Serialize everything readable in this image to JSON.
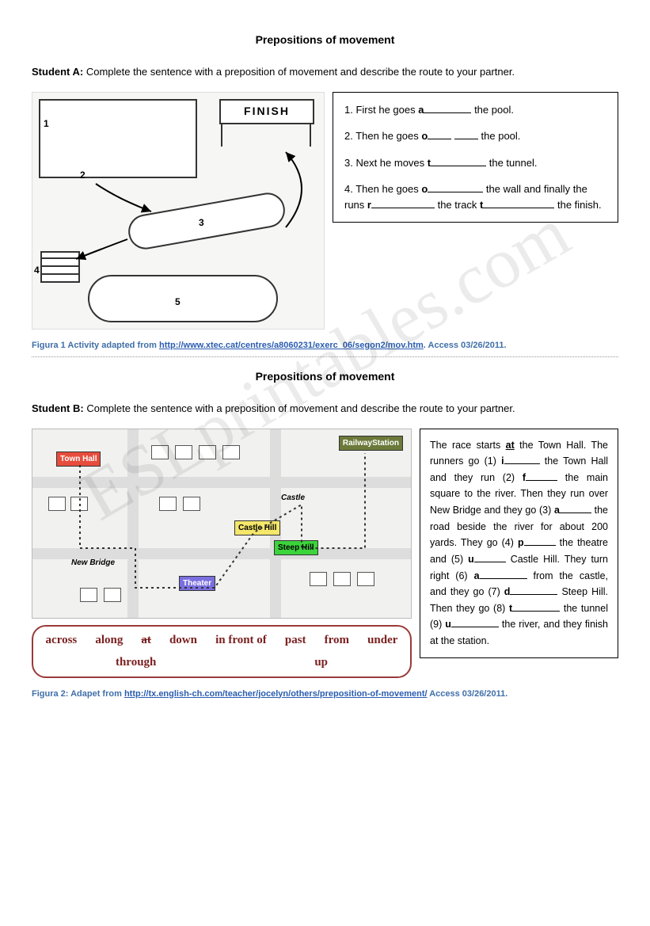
{
  "watermark_text": "ESLprintables.com",
  "sectionA": {
    "title": "Prepositions of movement",
    "instruction_prefix": "Student A:",
    "instruction_text": " Complete the sentence with a preposition of movement and describe the route to your partner.",
    "finish_label": "FINISH",
    "numbers": {
      "n1": "1",
      "n2": "2",
      "n3": "3",
      "n4": "4",
      "n5": "5"
    },
    "q1_a": "1. First he goes ",
    "q1_bold": "a",
    "q1_b": " the pool.",
    "q2_a": "2. Then he goes ",
    "q2_bold": "o",
    "q2_b": " the pool.",
    "q3_a": "3. Next he moves ",
    "q3_bold": "t",
    "q3_b": " the tunnel.",
    "q4_a": "4. Then he goes ",
    "q4_bold": "o",
    "q4_b": " the wall and finally the runs ",
    "q4_bold2": "r",
    "q4_c": " the track ",
    "q4_bold3": "t",
    "q4_d": " the finish.",
    "caption_prefix": "Figura 1 Activity adapted from ",
    "caption_url": "http://www.xtec.cat/centres/a8060231/exerc_06/segon2/mov.htm",
    "caption_access": ". Access 03/26/2011."
  },
  "sectionB": {
    "title": "Prepositions of movement",
    "instruction_prefix": "Student B:",
    "instruction_text": " Complete the sentence with a preposition of movement and describe the route to your partner.",
    "labels": {
      "townhall": {
        "text": "Town Hall",
        "bg": "#e74c3c",
        "color": "#ffffff"
      },
      "railway": {
        "text": "RailwayStation",
        "bg": "#6b7a3a",
        "color": "#ffffff"
      },
      "castle": {
        "text": "Castle",
        "bg": "transparent",
        "color": "#000000"
      },
      "castlehill": {
        "text": "Castle Hill",
        "bg": "#f4e76a",
        "color": "#000000"
      },
      "steephill": {
        "text": "Steep Hill",
        "bg": "#3bd43b",
        "color": "#000000"
      },
      "newbridge": {
        "text": "New Bridge",
        "bg": "transparent",
        "color": "#000000"
      },
      "theater": {
        "text": "Theater",
        "bg": "#7a6fe0",
        "color": "#ffffff"
      }
    },
    "wordbank": [
      "across",
      "along",
      "at",
      "down",
      "in front of",
      "past",
      "from",
      "under",
      "through",
      "up"
    ],
    "wordbank_struck": "at",
    "passage": {
      "t0": "The race starts ",
      "at_bold": "at",
      "t1": " the Town Hall. The runners go (1) ",
      "b1": "i",
      "t2": " the Town Hall and they run (2) ",
      "b2": "f",
      "t3": " the main square to the river. Then they run over New Bridge and they go (3) ",
      "b3": "a",
      "t4": " the road beside the river for about 200 yards. They go (4) ",
      "b4": "p",
      "t5": " the theatre and (5) ",
      "b5": "u",
      "t6": " Castle Hill. They turn right (6) ",
      "b6": "a",
      "t7": " from the castle, and they go (7) ",
      "b7": "d",
      "t8": " Steep Hill. Then they go (8) ",
      "b8": "t",
      "t9": " the tunnel (9) ",
      "b9": "u",
      "t10": " the river, and they finish at the station."
    },
    "caption_prefix": "Figura 2: Adapet from ",
    "caption_url": "http://tx.english-ch.com/teacher/jocelyn/others/preposition-of-movement/",
    "caption_access": " Access 03/26/2011."
  }
}
